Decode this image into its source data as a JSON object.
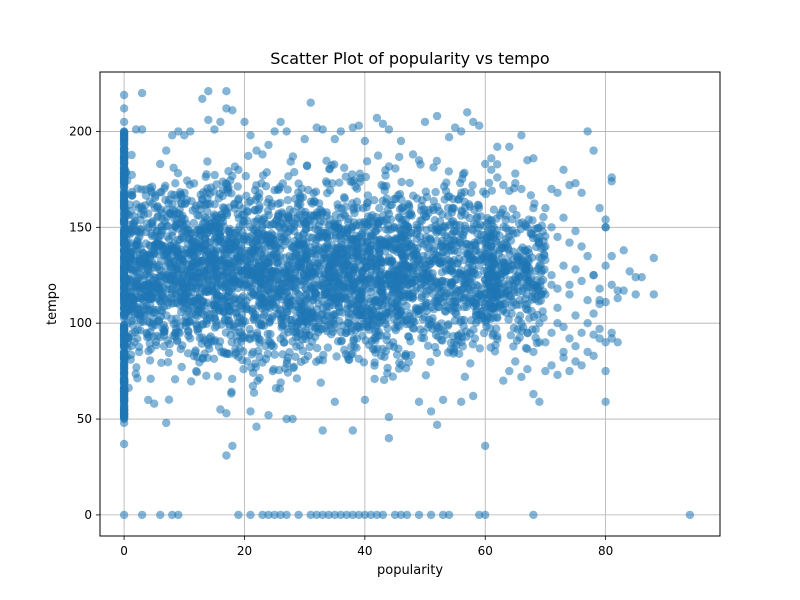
{
  "chart_data": {
    "type": "scatter",
    "title": "Scatter Plot of popularity vs tempo",
    "xlabel": "popularity",
    "ylabel": "tempo",
    "xlim": [
      -4,
      99
    ],
    "ylim": [
      -11,
      231
    ],
    "x_ticks": [
      0,
      20,
      40,
      60,
      80
    ],
    "y_ticks": [
      0,
      50,
      100,
      150,
      200
    ],
    "grid": true,
    "legend": "none",
    "point_color": "#1f77b4",
    "point_opacity": 0.55,
    "dense_regions": [
      {
        "x_range": [
          0,
          62
        ],
        "y_range": [
          62,
          192
        ]
      },
      {
        "x_range": [
          0,
          48
        ],
        "y_range": [
          52,
          200
        ]
      },
      {
        "x_range": [
          60,
          70
        ],
        "y_range": [
          75,
          180
        ]
      }
    ],
    "points": [
      [
        0,
        219
      ],
      [
        0,
        212
      ],
      [
        0,
        205
      ],
      [
        0,
        198
      ],
      [
        0,
        191
      ],
      [
        0,
        184
      ],
      [
        0,
        60
      ],
      [
        0,
        55
      ],
      [
        0,
        50
      ],
      [
        0,
        48
      ],
      [
        0,
        37
      ],
      [
        3,
        220
      ],
      [
        2,
        201
      ],
      [
        3,
        201
      ],
      [
        4,
        60
      ],
      [
        5,
        58
      ],
      [
        7,
        48
      ],
      [
        6,
        183
      ],
      [
        7,
        190
      ],
      [
        8,
        198
      ],
      [
        9,
        200
      ],
      [
        10,
        198
      ],
      [
        11,
        200
      ],
      [
        13,
        217
      ],
      [
        14,
        221
      ],
      [
        14,
        206
      ],
      [
        15,
        201
      ],
      [
        16,
        205
      ],
      [
        17,
        221
      ],
      [
        17,
        212
      ],
      [
        18,
        211
      ],
      [
        17,
        53
      ],
      [
        16,
        55
      ],
      [
        17,
        31
      ],
      [
        18,
        36
      ],
      [
        19,
        180
      ],
      [
        20,
        205
      ],
      [
        21,
        198
      ],
      [
        22,
        190
      ],
      [
        23,
        188
      ],
      [
        24,
        193
      ],
      [
        25,
        200
      ],
      [
        26,
        205
      ],
      [
        27,
        200
      ],
      [
        21,
        54
      ],
      [
        22,
        46
      ],
      [
        24,
        52
      ],
      [
        27,
        50
      ],
      [
        28,
        50
      ],
      [
        31,
        215
      ],
      [
        30,
        196
      ],
      [
        32,
        202
      ],
      [
        33,
        201
      ],
      [
        35,
        196
      ],
      [
        36,
        200
      ],
      [
        38,
        202
      ],
      [
        33,
        44
      ],
      [
        35,
        59
      ],
      [
        38,
        44
      ],
      [
        40,
        60
      ],
      [
        39,
        203
      ],
      [
        40,
        195
      ],
      [
        42,
        207
      ],
      [
        43,
        204
      ],
      [
        44,
        201
      ],
      [
        46,
        195
      ],
      [
        48,
        188
      ],
      [
        44,
        51
      ],
      [
        44,
        40
      ],
      [
        49,
        59
      ],
      [
        51,
        54
      ],
      [
        52,
        47
      ],
      [
        50,
        205
      ],
      [
        52,
        208
      ],
      [
        54,
        197
      ],
      [
        55,
        202
      ],
      [
        57,
        210
      ],
      [
        58,
        205
      ],
      [
        59,
        203
      ],
      [
        56,
        200
      ],
      [
        53,
        60
      ],
      [
        56,
        59
      ],
      [
        58,
        62
      ],
      [
        60,
        36
      ],
      [
        60,
        183
      ],
      [
        61,
        180
      ],
      [
        62,
        176
      ],
      [
        63,
        172
      ],
      [
        64,
        169
      ],
      [
        65,
        173
      ],
      [
        66,
        170
      ],
      [
        61,
        186
      ],
      [
        62,
        192
      ],
      [
        64,
        192
      ],
      [
        66,
        198
      ],
      [
        65,
        178
      ],
      [
        67,
        185
      ],
      [
        68,
        186
      ],
      [
        63,
        70
      ],
      [
        64,
        75
      ],
      [
        65,
        80
      ],
      [
        66,
        72
      ],
      [
        67,
        76
      ],
      [
        68,
        63
      ],
      [
        69,
        59
      ],
      [
        66,
        100
      ],
      [
        67,
        110
      ],
      [
        68,
        120
      ],
      [
        69,
        130
      ],
      [
        70,
        140
      ],
      [
        71,
        150
      ],
      [
        72,
        145
      ],
      [
        73,
        155
      ],
      [
        74,
        142
      ],
      [
        75,
        148
      ],
      [
        70,
        160
      ],
      [
        71,
        170
      ],
      [
        72,
        168
      ],
      [
        73,
        180
      ],
      [
        74,
        172
      ],
      [
        75,
        173
      ],
      [
        76,
        168
      ],
      [
        77,
        200
      ],
      [
        78,
        190
      ],
      [
        79,
        160
      ],
      [
        80,
        150
      ],
      [
        70,
        90
      ],
      [
        71,
        95
      ],
      [
        72,
        100
      ],
      [
        73,
        85
      ],
      [
        74,
        92
      ],
      [
        75,
        88
      ],
      [
        76,
        95
      ],
      [
        77,
        100
      ],
      [
        78,
        105
      ],
      [
        79,
        110
      ],
      [
        80,
        90
      ],
      [
        81,
        95
      ],
      [
        70,
        75
      ],
      [
        71,
        78
      ],
      [
        72,
        73
      ],
      [
        73,
        82
      ],
      [
        74,
        75
      ],
      [
        75,
        80
      ],
      [
        76,
        78
      ],
      [
        77,
        85
      ],
      [
        78,
        83
      ],
      [
        79,
        92
      ],
      [
        80,
        75
      ],
      [
        80,
        59
      ],
      [
        70,
        115
      ],
      [
        71,
        125
      ],
      [
        72,
        118
      ],
      [
        73,
        130
      ],
      [
        74,
        120
      ],
      [
        75,
        128
      ],
      [
        76,
        122
      ],
      [
        77,
        135
      ],
      [
        78,
        125
      ],
      [
        79,
        118
      ],
      [
        80,
        130
      ],
      [
        81,
        176
      ],
      [
        81,
        174
      ],
      [
        80,
        154
      ],
      [
        80,
        150
      ],
      [
        81,
        135
      ],
      [
        81,
        120
      ],
      [
        82,
        117
      ],
      [
        82,
        113
      ],
      [
        83,
        117
      ],
      [
        83,
        138
      ],
      [
        84,
        127
      ],
      [
        82,
        90
      ],
      [
        81,
        92
      ],
      [
        85,
        115
      ],
      [
        85,
        124
      ],
      [
        86,
        124
      ],
      [
        88,
        134
      ],
      [
        88,
        115
      ],
      [
        79,
        112
      ],
      [
        80,
        111
      ],
      [
        78,
        125
      ],
      [
        70,
        133
      ],
      [
        71,
        120
      ],
      [
        72,
        108
      ],
      [
        73,
        98
      ],
      [
        74,
        115
      ],
      [
        75,
        104
      ],
      [
        76,
        140
      ],
      [
        77,
        112
      ],
      [
        78,
        94
      ],
      [
        79,
        97
      ],
      [
        67,
        150
      ],
      [
        68,
        160
      ],
      [
        69,
        145
      ],
      [
        67,
        130
      ],
      [
        68,
        120
      ],
      [
        69,
        90
      ],
      [
        67,
        95
      ],
      [
        68,
        85
      ],
      [
        69,
        100
      ],
      [
        0,
        0
      ],
      [
        3,
        0
      ],
      [
        6,
        0
      ],
      [
        8,
        0
      ],
      [
        9,
        0
      ],
      [
        19,
        0
      ],
      [
        21,
        0
      ],
      [
        23,
        0
      ],
      [
        24,
        0
      ],
      [
        25,
        0
      ],
      [
        26,
        0
      ],
      [
        27,
        0
      ],
      [
        29,
        0
      ],
      [
        31,
        0
      ],
      [
        32,
        0
      ],
      [
        33,
        0
      ],
      [
        34,
        0
      ],
      [
        35,
        0
      ],
      [
        36,
        0
      ],
      [
        37,
        0
      ],
      [
        38,
        0
      ],
      [
        39,
        0
      ],
      [
        40,
        0
      ],
      [
        41,
        0
      ],
      [
        42,
        0
      ],
      [
        43,
        0
      ],
      [
        45,
        0
      ],
      [
        46,
        0
      ],
      [
        47,
        0
      ],
      [
        49,
        0
      ],
      [
        51,
        0
      ],
      [
        53,
        0
      ],
      [
        54,
        0
      ],
      [
        59,
        0
      ],
      [
        60,
        0
      ],
      [
        68,
        0
      ],
      [
        94,
        0
      ]
    ]
  }
}
